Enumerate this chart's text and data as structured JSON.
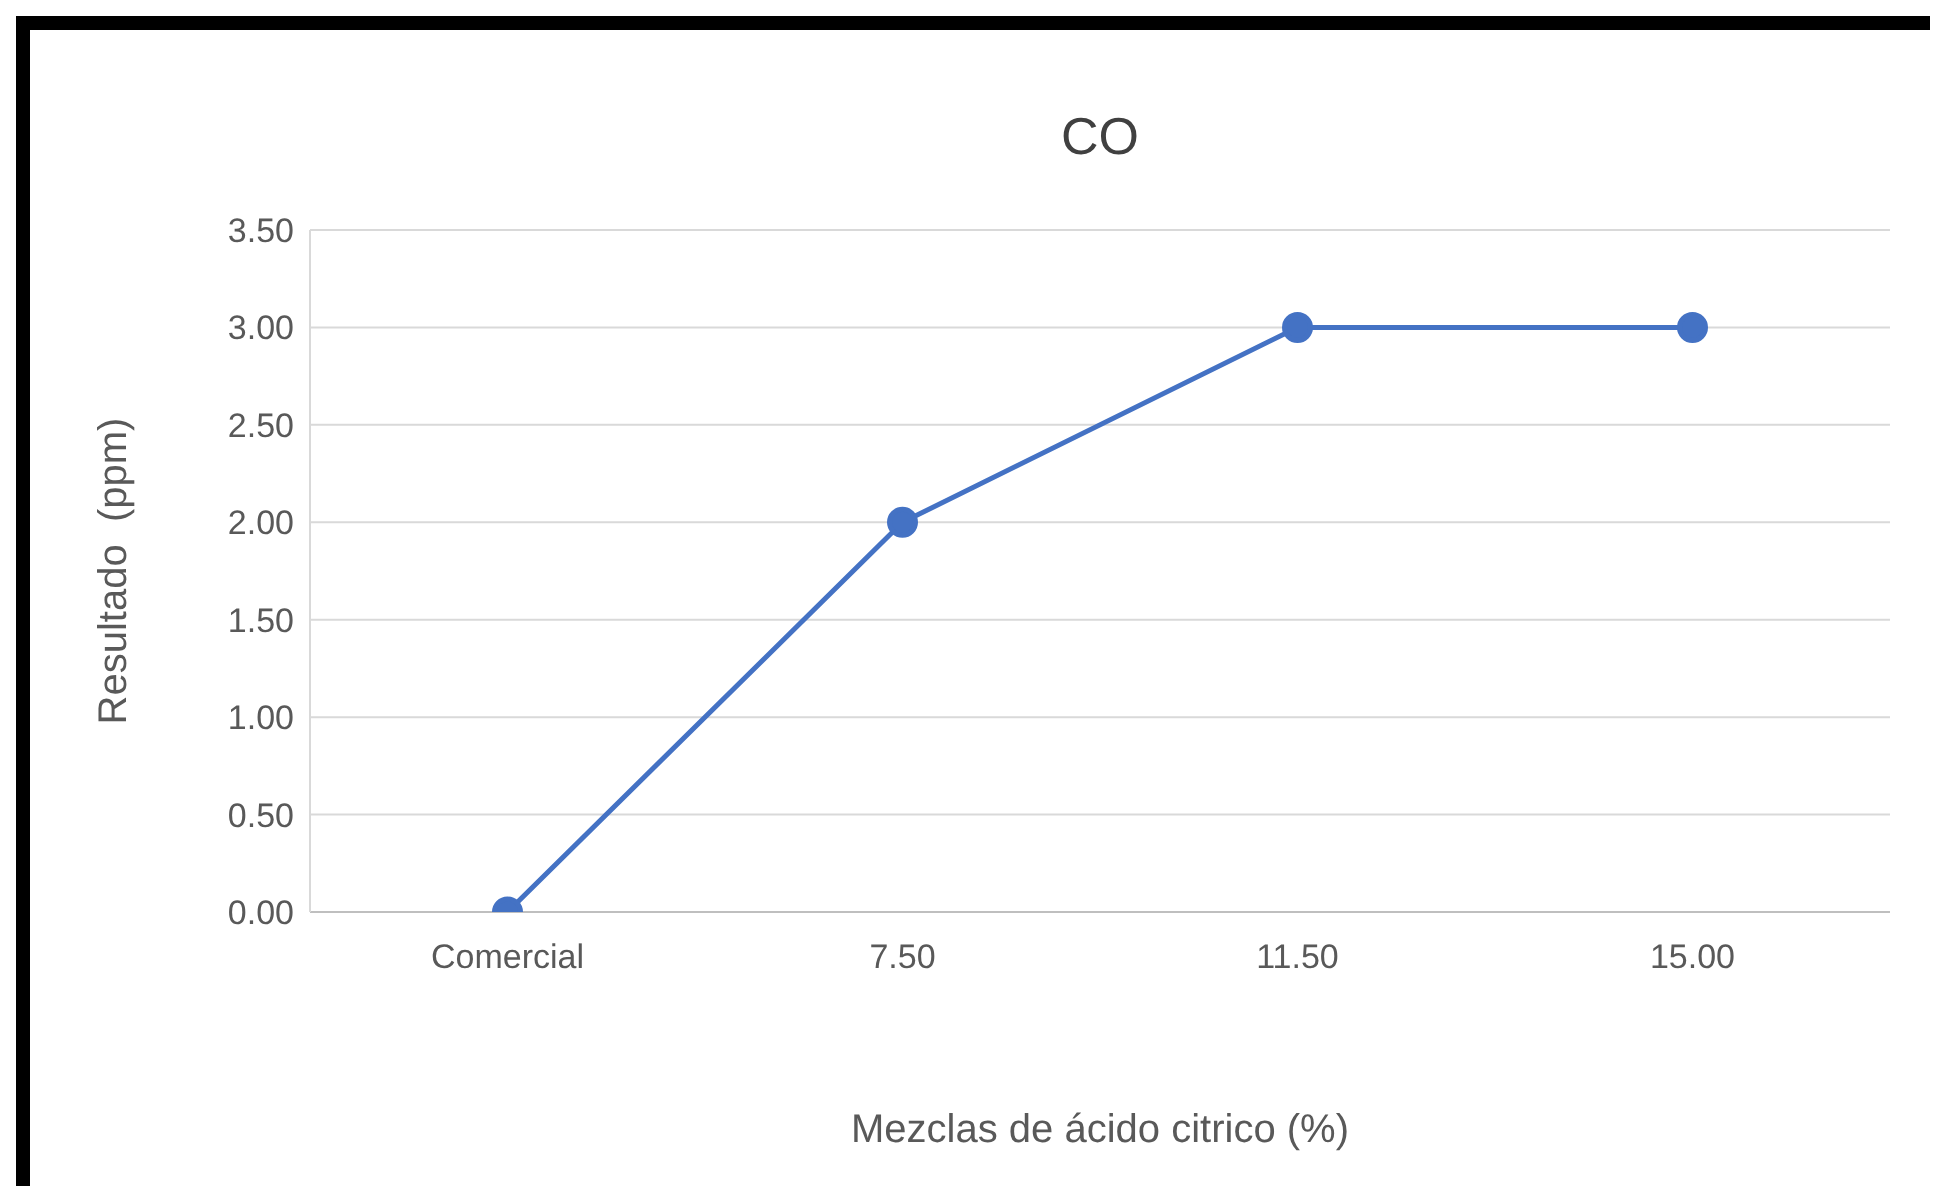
{
  "chart_data": {
    "type": "line",
    "title": "CO",
    "xlabel": "Mezclas de ácido citrico (%)",
    "ylabel": "Resultado  (ppm)",
    "categories": [
      "Comercial",
      "7.50",
      "11.50",
      "15.00"
    ],
    "series": [
      {
        "color": "#4472c4",
        "values": [
          0,
          2,
          3,
          3
        ]
      }
    ],
    "ylim": [
      0,
      3.5
    ],
    "yticks": [
      {
        "value": 0,
        "label": "0.00"
      },
      {
        "value": 0.5,
        "label": "0.50"
      },
      {
        "value": 1,
        "label": "1.00"
      },
      {
        "value": 1.5,
        "label": "1.50"
      },
      {
        "value": 2,
        "label": "2.00"
      },
      {
        "value": 2.5,
        "label": "2.50"
      },
      {
        "value": 3,
        "label": "3.00"
      },
      {
        "value": 3.5,
        "label": "3.50"
      }
    ],
    "grid": "y",
    "marker": "circle",
    "line_style": "solid",
    "legend": false
  }
}
